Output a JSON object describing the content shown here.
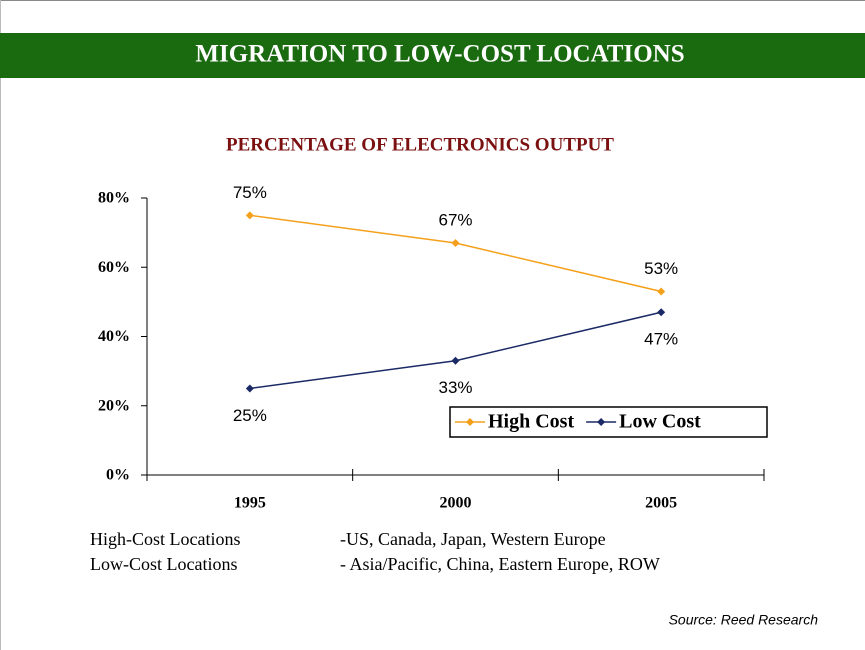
{
  "header": {
    "title": "MIGRATION TO LOW-COST LOCATIONS"
  },
  "chart_data": {
    "type": "line",
    "title": "PERCENTAGE OF ELECTRONICS OUTPUT",
    "categories": [
      "1995",
      "2000",
      "2005"
    ],
    "series": [
      {
        "name": "High Cost",
        "color": "#f5a01a",
        "values": [
          75,
          67,
          53
        ],
        "value_labels": [
          "75%",
          "67%",
          "53%"
        ]
      },
      {
        "name": "Low Cost",
        "color": "#1b2a66",
        "values": [
          25,
          33,
          47
        ],
        "value_labels": [
          "25%",
          "33%",
          "47%"
        ]
      }
    ],
    "ylim": [
      0,
      80
    ],
    "yticks": [
      {
        "value": 0,
        "label": "0%"
      },
      {
        "value": 20,
        "label": "20%"
      },
      {
        "value": 40,
        "label": "40%"
      },
      {
        "value": 60,
        "label": "60%"
      },
      {
        "value": 80,
        "label": "80%"
      }
    ],
    "legend": "lower right"
  },
  "notes": [
    {
      "label": "High-Cost Locations",
      "text": "-US, Canada, Japan, Western Europe"
    },
    {
      "label": "Low-Cost Locations",
      "text": "- Asia/Pacific, China, Eastern Europe, ROW"
    }
  ],
  "source": "Source: Reed Research"
}
